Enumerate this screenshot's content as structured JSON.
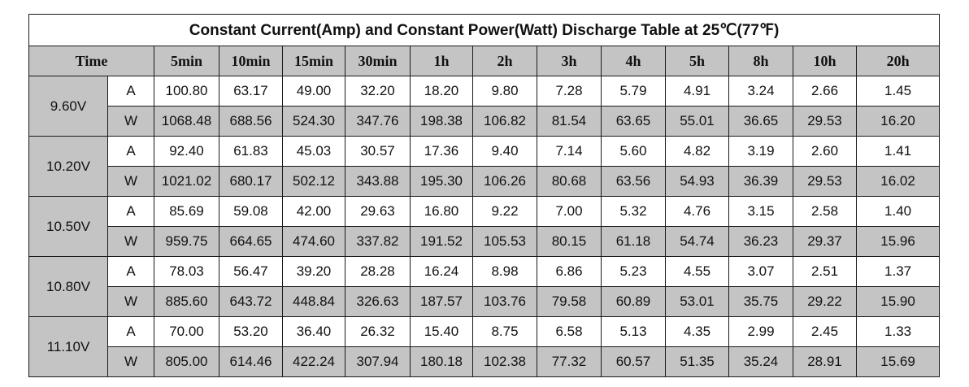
{
  "title": "Constant Current(Amp) and Constant Power(Watt) Discharge Table at 25℃(77℉)",
  "header": {
    "time_label": "Time",
    "columns": [
      "5min",
      "10min",
      "15min",
      "30min",
      "1h",
      "2h",
      "3h",
      "4h",
      "5h",
      "8h",
      "10h",
      "20h"
    ]
  },
  "groups": [
    {
      "voltage": "9.60V",
      "rows": [
        {
          "unit": "A",
          "values": [
            "100.80",
            "63.17",
            "49.00",
            "32.20",
            "18.20",
            "9.80",
            "7.28",
            "5.79",
            "4.91",
            "3.24",
            "2.66",
            "1.45"
          ]
        },
        {
          "unit": "W",
          "values": [
            "1068.48",
            "688.56",
            "524.30",
            "347.76",
            "198.38",
            "106.82",
            "81.54",
            "63.65",
            "55.01",
            "36.65",
            "29.53",
            "16.20"
          ]
        }
      ]
    },
    {
      "voltage": "10.20V",
      "rows": [
        {
          "unit": "A",
          "values": [
            "92.40",
            "61.83",
            "45.03",
            "30.57",
            "17.36",
            "9.40",
            "7.14",
            "5.60",
            "4.82",
            "3.19",
            "2.60",
            "1.41"
          ]
        },
        {
          "unit": "W",
          "values": [
            "1021.02",
            "680.17",
            "502.12",
            "343.88",
            "195.30",
            "106.26",
            "80.68",
            "63.56",
            "54.93",
            "36.39",
            "29.53",
            "16.02"
          ]
        }
      ]
    },
    {
      "voltage": "10.50V",
      "rows": [
        {
          "unit": "A",
          "values": [
            "85.69",
            "59.08",
            "42.00",
            "29.63",
            "16.80",
            "9.22",
            "7.00",
            "5.32",
            "4.76",
            "3.15",
            "2.58",
            "1.40"
          ]
        },
        {
          "unit": "W",
          "values": [
            "959.75",
            "664.65",
            "474.60",
            "337.82",
            "191.52",
            "105.53",
            "80.15",
            "61.18",
            "54.74",
            "36.23",
            "29.37",
            "15.96"
          ]
        }
      ]
    },
    {
      "voltage": "10.80V",
      "rows": [
        {
          "unit": "A",
          "values": [
            "78.03",
            "56.47",
            "39.20",
            "28.28",
            "16.24",
            "8.98",
            "6.86",
            "5.23",
            "4.55",
            "3.07",
            "2.51",
            "1.37"
          ]
        },
        {
          "unit": "W",
          "values": [
            "885.60",
            "643.72",
            "448.84",
            "326.63",
            "187.57",
            "103.76",
            "79.58",
            "60.89",
            "53.01",
            "35.75",
            "29.22",
            "15.90"
          ]
        }
      ]
    },
    {
      "voltage": "11.10V",
      "rows": [
        {
          "unit": "A",
          "values": [
            "70.00",
            "53.20",
            "36.40",
            "26.32",
            "15.40",
            "8.75",
            "6.58",
            "5.13",
            "4.35",
            "2.99",
            "2.45",
            "1.33"
          ]
        },
        {
          "unit": "W",
          "values": [
            "805.00",
            "614.46",
            "422.24",
            "307.94",
            "180.18",
            "102.38",
            "77.32",
            "60.57",
            "51.35",
            "35.24",
            "28.91",
            "15.69"
          ]
        }
      ]
    }
  ]
}
